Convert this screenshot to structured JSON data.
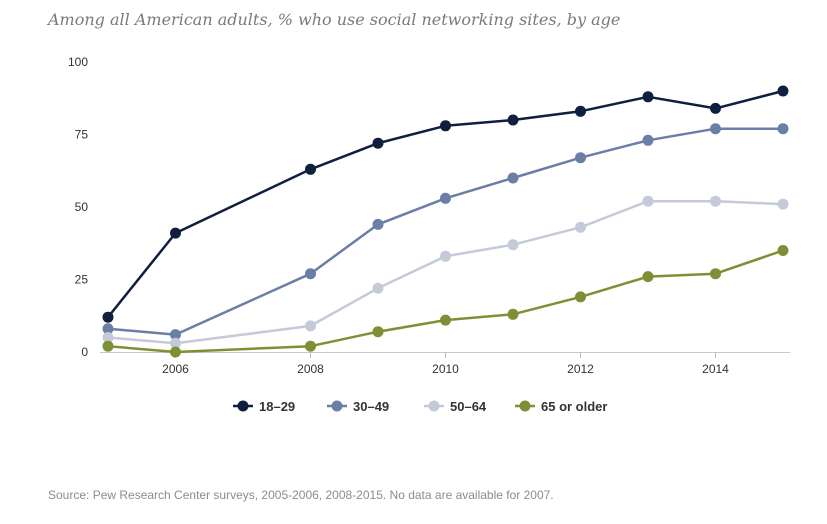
{
  "chart_data": {
    "type": "line",
    "title": "Among all American adults, % who use social networking sites, by age",
    "source": "Source: Pew Research Center surveys, 2005-2006, 2008-2015. No data are available for 2007.",
    "xlabel": "",
    "ylabel": "",
    "xlim": [
      2005,
      2015
    ],
    "ylim": [
      0,
      100
    ],
    "x_ticks": [
      2006,
      2008,
      2010,
      2012,
      2014
    ],
    "y_ticks": [
      0,
      25,
      50,
      75,
      100
    ],
    "grid": false,
    "legend_position": "bottom-center",
    "series": [
      {
        "name": "18–29",
        "color": "#0f1f3d",
        "x": [
          2005,
          2006,
          2008,
          2009,
          2010,
          2011,
          2012,
          2013,
          2014,
          2015
        ],
        "values": [
          12,
          41,
          63,
          72,
          78,
          80,
          83,
          88,
          84,
          90
        ]
      },
      {
        "name": "30–49",
        "color": "#6b7fa6",
        "x": [
          2005,
          2006,
          2008,
          2009,
          2010,
          2011,
          2012,
          2013,
          2014,
          2015
        ],
        "values": [
          8,
          6,
          27,
          44,
          53,
          60,
          67,
          73,
          77,
          77
        ]
      },
      {
        "name": "50–64",
        "color": "#c5cad8",
        "x": [
          2005,
          2006,
          2008,
          2009,
          2010,
          2011,
          2012,
          2013,
          2014,
          2015
        ],
        "values": [
          5,
          3,
          9,
          22,
          33,
          37,
          43,
          52,
          52,
          51
        ]
      },
      {
        "name": "65 or older",
        "color": "#7f8f35",
        "x": [
          2005,
          2006,
          2008,
          2009,
          2010,
          2011,
          2012,
          2013,
          2014,
          2015
        ],
        "values": [
          2,
          0,
          2,
          7,
          11,
          13,
          19,
          26,
          27,
          35
        ]
      }
    ]
  }
}
